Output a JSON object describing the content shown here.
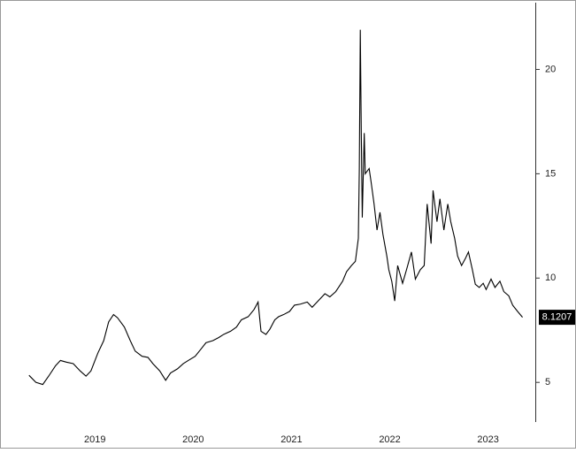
{
  "chart_data": {
    "type": "line",
    "color": "#000000",
    "x": [
      2018.83,
      2018.9,
      2018.97,
      2019.03,
      2019.1,
      2019.15,
      2019.21,
      2019.28,
      2019.35,
      2019.41,
      2019.46,
      2019.53,
      2019.59,
      2019.64,
      2019.69,
      2019.73,
      2019.8,
      2019.86,
      2019.91,
      2019.98,
      2020.04,
      2020.09,
      2020.16,
      2020.22,
      2020.27,
      2020.34,
      2020.4,
      2020.45,
      2020.52,
      2020.58,
      2020.63,
      2020.7,
      2020.76,
      2020.81,
      2020.88,
      2020.94,
      2020.99,
      2021.06,
      2021.12,
      2021.16,
      2021.19,
      2021.24,
      2021.28,
      2021.33,
      2021.37,
      2021.42,
      2021.48,
      2021.53,
      2021.59,
      2021.66,
      2021.71,
      2021.77,
      2021.84,
      2021.89,
      2021.95,
      2022.02,
      2022.06,
      2022.11,
      2022.15,
      2022.18,
      2022.19,
      2022.2,
      2022.21,
      2022.22,
      2022.24,
      2022.25,
      2022.29,
      2022.31,
      2022.34,
      2022.37,
      2022.4,
      2022.43,
      2022.47,
      2022.49,
      2022.52,
      2022.55,
      2022.58,
      2022.63,
      2022.67,
      2022.72,
      2022.76,
      2022.81,
      2022.85,
      2022.88,
      2022.92,
      2022.94,
      2022.98,
      2023.01,
      2023.05,
      2023.09,
      2023.12,
      2023.16,
      2023.19,
      2023.23,
      2023.27,
      2023.3,
      2023.34,
      2023.37,
      2023.41,
      2023.45,
      2023.48,
      2023.53,
      2023.57,
      2023.62,
      2023.66,
      2023.71,
      2023.75,
      2023.8,
      2023.85
    ],
    "values": [
      5.34,
      5.0,
      4.9,
      5.3,
      5.8,
      6.05,
      5.97,
      5.9,
      5.55,
      5.3,
      5.55,
      6.4,
      7.0,
      7.9,
      8.25,
      8.1,
      7.65,
      7.0,
      6.5,
      6.25,
      6.2,
      5.9,
      5.55,
      5.1,
      5.45,
      5.65,
      5.9,
      6.05,
      6.25,
      6.6,
      6.9,
      7.0,
      7.15,
      7.3,
      7.45,
      7.65,
      8.0,
      8.15,
      8.5,
      8.85,
      7.45,
      7.3,
      7.55,
      8.0,
      8.15,
      8.25,
      8.4,
      8.7,
      8.75,
      8.85,
      8.6,
      8.9,
      9.25,
      9.1,
      9.35,
      9.85,
      10.3,
      10.6,
      10.8,
      11.9,
      15.25,
      21.9,
      16.95,
      12.9,
      16.95,
      15.0,
      15.25,
      14.6,
      13.55,
      12.3,
      13.15,
      12.1,
      11.05,
      10.4,
      9.85,
      8.9,
      10.6,
      9.75,
      10.4,
      11.25,
      9.95,
      10.4,
      10.6,
      13.55,
      11.65,
      14.2,
      12.7,
      13.8,
      12.3,
      13.55,
      12.7,
      11.9,
      11.05,
      10.6,
      10.95,
      11.25,
      10.4,
      9.7,
      9.55,
      9.75,
      9.45,
      9.95,
      9.55,
      9.85,
      9.35,
      9.15,
      8.7,
      8.4,
      8.1207
    ],
    "xlim": [
      2018.58,
      2023.98
    ],
    "xticks": [
      {
        "value": 2019.5,
        "label": "2019"
      },
      {
        "value": 2020.5,
        "label": "2020"
      },
      {
        "value": 2021.5,
        "label": "2021"
      },
      {
        "value": 2022.5,
        "label": "2022"
      },
      {
        "value": 2023.5,
        "label": "2023"
      }
    ],
    "ylim": [
      3.1,
      23.2
    ],
    "yticks": [
      5,
      10,
      15,
      20
    ]
  }
}
